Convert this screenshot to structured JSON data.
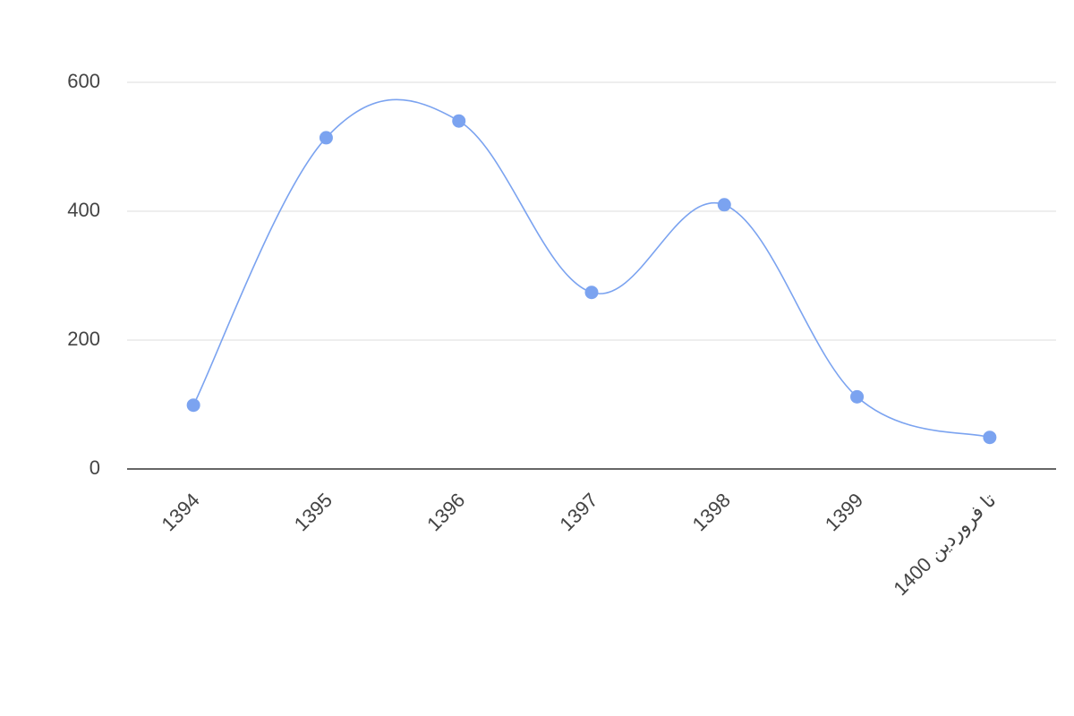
{
  "chart_data": {
    "type": "line",
    "categories": [
      "1394",
      "1395",
      "1396",
      "1397",
      "1398",
      "1399",
      "تا فروردین 1400"
    ],
    "series": [
      {
        "color": "#7ba3f0",
        "values": [
          99,
          514,
          540,
          274,
          410,
          112,
          49
        ]
      }
    ],
    "ylim": [
      0,
      600
    ],
    "yticks": [
      0,
      200,
      400,
      600
    ],
    "grid": true,
    "smooth": true
  }
}
